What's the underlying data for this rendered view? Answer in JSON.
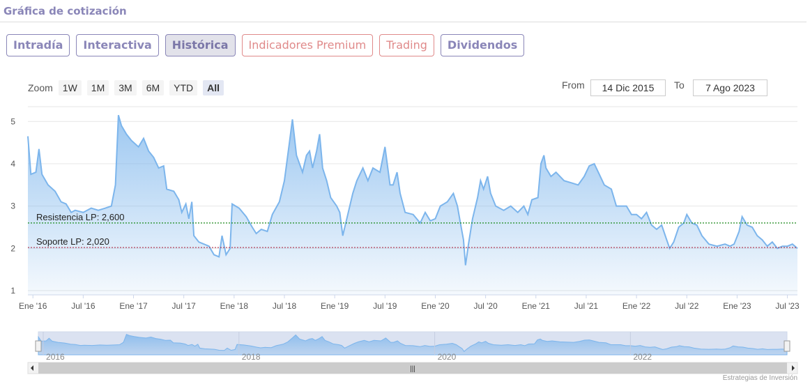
{
  "title": "Gráfica de cotización",
  "tabs": [
    {
      "label": "Intradía"
    },
    {
      "label": "Interactiva"
    },
    {
      "label": "Histórica"
    },
    {
      "label": "Indicadores Premium"
    },
    {
      "label": "Trading"
    },
    {
      "label": "Dividendos"
    }
  ],
  "zoom": {
    "label": "Zoom",
    "buttons": [
      "1W",
      "1M",
      "3M",
      "6M",
      "YTD",
      "All"
    ],
    "selected": "All"
  },
  "range": {
    "from_label": "From",
    "from_value": "14 Dic 2015",
    "to_label": "To",
    "to_value": "7 Ago 2023"
  },
  "footer": "Estrategias de Inversión",
  "chart_data": {
    "type": "area",
    "ylim": [
      0.9,
      5.4
    ],
    "yticks": [
      1,
      2,
      3,
      4,
      5
    ],
    "x_range": [
      2015.95,
      2023.6
    ],
    "xticks": [
      {
        "label": "Ene '16",
        "x": 2016.0
      },
      {
        "label": "Jul '16",
        "x": 2016.5
      },
      {
        "label": "Ene '17",
        "x": 2017.0
      },
      {
        "label": "Jul '17",
        "x": 2017.5
      },
      {
        "label": "Ene '18",
        "x": 2018.0
      },
      {
        "label": "Jul '18",
        "x": 2018.5
      },
      {
        "label": "Ene '19",
        "x": 2019.0
      },
      {
        "label": "Jul '19",
        "x": 2019.5
      },
      {
        "label": "Ene '20",
        "x": 2020.0
      },
      {
        "label": "Jul '20",
        "x": 2020.5
      },
      {
        "label": "Ene '21",
        "x": 2021.0
      },
      {
        "label": "Jul '21",
        "x": 2021.5
      },
      {
        "label": "Ene '22",
        "x": 2022.0
      },
      {
        "label": "Jul '22",
        "x": 2022.5
      },
      {
        "label": "Ene '23",
        "x": 2023.0
      },
      {
        "label": "Jul '23",
        "x": 2023.5
      }
    ],
    "navigator_labels": [
      {
        "label": "2016",
        "x": 2016.0
      },
      {
        "label": "2018",
        "x": 2018.0
      },
      {
        "label": "2020",
        "x": 2020.0
      },
      {
        "label": "2022",
        "x": 2022.0
      }
    ],
    "reference_lines": [
      {
        "label": "Resistencia LP: 2,600",
        "value": 2.6,
        "color": "#1a8a1a"
      },
      {
        "label": "Soporte LP: 2,020",
        "value": 2.02,
        "color": "#b0304a"
      }
    ],
    "series": [
      {
        "color": "#7cb5ec",
        "points": [
          [
            2015.95,
            4.65
          ],
          [
            2015.98,
            3.75
          ],
          [
            2016.03,
            3.8
          ],
          [
            2016.06,
            4.35
          ],
          [
            2016.09,
            3.75
          ],
          [
            2016.15,
            3.5
          ],
          [
            2016.22,
            3.35
          ],
          [
            2016.28,
            3.1
          ],
          [
            2016.33,
            3.05
          ],
          [
            2016.38,
            2.85
          ],
          [
            2016.42,
            2.9
          ],
          [
            2016.5,
            2.85
          ],
          [
            2016.58,
            2.95
          ],
          [
            2016.65,
            2.9
          ],
          [
            2016.72,
            2.95
          ],
          [
            2016.78,
            3.0
          ],
          [
            2016.82,
            3.5
          ],
          [
            2016.85,
            5.15
          ],
          [
            2016.88,
            4.9
          ],
          [
            2016.93,
            4.7
          ],
          [
            2016.98,
            4.55
          ],
          [
            2017.05,
            4.4
          ],
          [
            2017.1,
            4.6
          ],
          [
            2017.15,
            4.3
          ],
          [
            2017.2,
            4.15
          ],
          [
            2017.25,
            3.9
          ],
          [
            2017.3,
            3.95
          ],
          [
            2017.33,
            3.4
          ],
          [
            2017.4,
            3.35
          ],
          [
            2017.45,
            3.15
          ],
          [
            2017.48,
            2.85
          ],
          [
            2017.52,
            3.05
          ],
          [
            2017.55,
            2.7
          ],
          [
            2017.58,
            3.1
          ],
          [
            2017.6,
            2.3
          ],
          [
            2017.65,
            2.15
          ],
          [
            2017.75,
            2.05
          ],
          [
            2017.8,
            1.85
          ],
          [
            2017.85,
            1.8
          ],
          [
            2017.88,
            2.3
          ],
          [
            2017.92,
            1.85
          ],
          [
            2017.96,
            2.0
          ],
          [
            2017.98,
            3.05
          ],
          [
            2018.05,
            2.95
          ],
          [
            2018.12,
            2.75
          ],
          [
            2018.18,
            2.5
          ],
          [
            2018.22,
            2.35
          ],
          [
            2018.27,
            2.45
          ],
          [
            2018.33,
            2.4
          ],
          [
            2018.38,
            2.8
          ],
          [
            2018.45,
            3.1
          ],
          [
            2018.5,
            3.6
          ],
          [
            2018.55,
            4.5
          ],
          [
            2018.58,
            5.05
          ],
          [
            2018.62,
            4.2
          ],
          [
            2018.68,
            3.8
          ],
          [
            2018.72,
            4.2
          ],
          [
            2018.75,
            4.3
          ],
          [
            2018.78,
            3.9
          ],
          [
            2018.82,
            4.3
          ],
          [
            2018.85,
            4.7
          ],
          [
            2018.88,
            3.9
          ],
          [
            2018.92,
            3.6
          ],
          [
            2018.96,
            3.2
          ],
          [
            2019.02,
            3.0
          ],
          [
            2019.05,
            2.85
          ],
          [
            2019.08,
            2.3
          ],
          [
            2019.12,
            2.7
          ],
          [
            2019.18,
            3.3
          ],
          [
            2019.22,
            3.6
          ],
          [
            2019.28,
            3.9
          ],
          [
            2019.33,
            3.6
          ],
          [
            2019.38,
            3.9
          ],
          [
            2019.45,
            3.8
          ],
          [
            2019.5,
            4.4
          ],
          [
            2019.55,
            3.5
          ],
          [
            2019.58,
            3.5
          ],
          [
            2019.62,
            3.8
          ],
          [
            2019.65,
            3.3
          ],
          [
            2019.7,
            2.85
          ],
          [
            2019.78,
            2.8
          ],
          [
            2019.85,
            2.6
          ],
          [
            2019.9,
            2.85
          ],
          [
            2019.95,
            2.65
          ],
          [
            2020.0,
            2.7
          ],
          [
            2020.05,
            3.0
          ],
          [
            2020.12,
            3.1
          ],
          [
            2020.18,
            3.3
          ],
          [
            2020.22,
            3.0
          ],
          [
            2020.25,
            2.6
          ],
          [
            2020.28,
            2.2
          ],
          [
            2020.3,
            1.6
          ],
          [
            2020.33,
            2.1
          ],
          [
            2020.37,
            2.7
          ],
          [
            2020.42,
            3.2
          ],
          [
            2020.45,
            3.6
          ],
          [
            2020.48,
            3.4
          ],
          [
            2020.52,
            3.7
          ],
          [
            2020.55,
            3.3
          ],
          [
            2020.6,
            3.0
          ],
          [
            2020.68,
            2.9
          ],
          [
            2020.75,
            3.0
          ],
          [
            2020.82,
            2.85
          ],
          [
            2020.88,
            3.0
          ],
          [
            2020.92,
            2.8
          ],
          [
            2020.96,
            3.15
          ],
          [
            2021.02,
            3.2
          ],
          [
            2021.05,
            4.0
          ],
          [
            2021.08,
            4.2
          ],
          [
            2021.1,
            3.9
          ],
          [
            2021.15,
            3.7
          ],
          [
            2021.2,
            3.8
          ],
          [
            2021.28,
            3.6
          ],
          [
            2021.35,
            3.55
          ],
          [
            2021.42,
            3.5
          ],
          [
            2021.48,
            3.7
          ],
          [
            2021.53,
            3.95
          ],
          [
            2021.58,
            4.0
          ],
          [
            2021.62,
            3.8
          ],
          [
            2021.68,
            3.5
          ],
          [
            2021.75,
            3.4
          ],
          [
            2021.8,
            3.0
          ],
          [
            2021.9,
            3.0
          ],
          [
            2021.95,
            2.8
          ],
          [
            2022.0,
            2.8
          ],
          [
            2022.05,
            2.7
          ],
          [
            2022.1,
            2.85
          ],
          [
            2022.15,
            2.55
          ],
          [
            2022.2,
            2.45
          ],
          [
            2022.25,
            2.55
          ],
          [
            2022.3,
            2.2
          ],
          [
            2022.33,
            2.0
          ],
          [
            2022.37,
            2.15
          ],
          [
            2022.42,
            2.5
          ],
          [
            2022.47,
            2.6
          ],
          [
            2022.5,
            2.8
          ],
          [
            2022.55,
            2.6
          ],
          [
            2022.6,
            2.55
          ],
          [
            2022.65,
            2.3
          ],
          [
            2022.72,
            2.1
          ],
          [
            2022.8,
            2.05
          ],
          [
            2022.88,
            2.1
          ],
          [
            2022.93,
            2.05
          ],
          [
            2022.97,
            2.1
          ],
          [
            2023.02,
            2.4
          ],
          [
            2023.05,
            2.75
          ],
          [
            2023.1,
            2.55
          ],
          [
            2023.15,
            2.5
          ],
          [
            2023.2,
            2.3
          ],
          [
            2023.25,
            2.2
          ],
          [
            2023.3,
            2.05
          ],
          [
            2023.35,
            2.15
          ],
          [
            2023.4,
            2.0
          ],
          [
            2023.45,
            2.05
          ],
          [
            2023.5,
            2.05
          ],
          [
            2023.55,
            2.1
          ],
          [
            2023.6,
            2.0
          ]
        ]
      }
    ]
  }
}
